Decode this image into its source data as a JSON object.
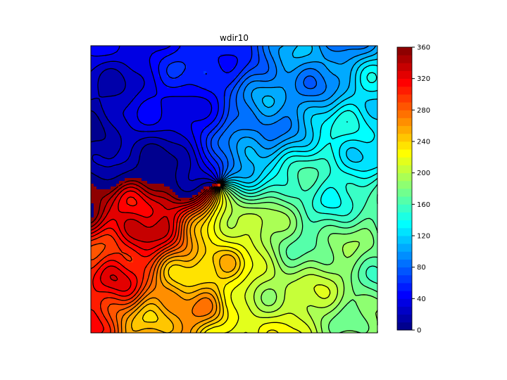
{
  "chart_data": {
    "type": "heatmap",
    "style": "filled contour with black contour lines",
    "title": "wdir10",
    "colormap": "jet",
    "vmin": 0,
    "vmax": 360,
    "level_step": 10,
    "colorbar": {
      "placement": "right",
      "ticks": [
        0,
        40,
        80,
        120,
        160,
        200,
        240,
        280,
        320,
        360
      ]
    },
    "field_pattern": {
      "description": "wind direction rotates around a central point; values by compass side",
      "west": 0,
      "north": 60,
      "east": 150,
      "south": 230,
      "west_wrap": 360
    },
    "axes_ticks_visible": false
  }
}
